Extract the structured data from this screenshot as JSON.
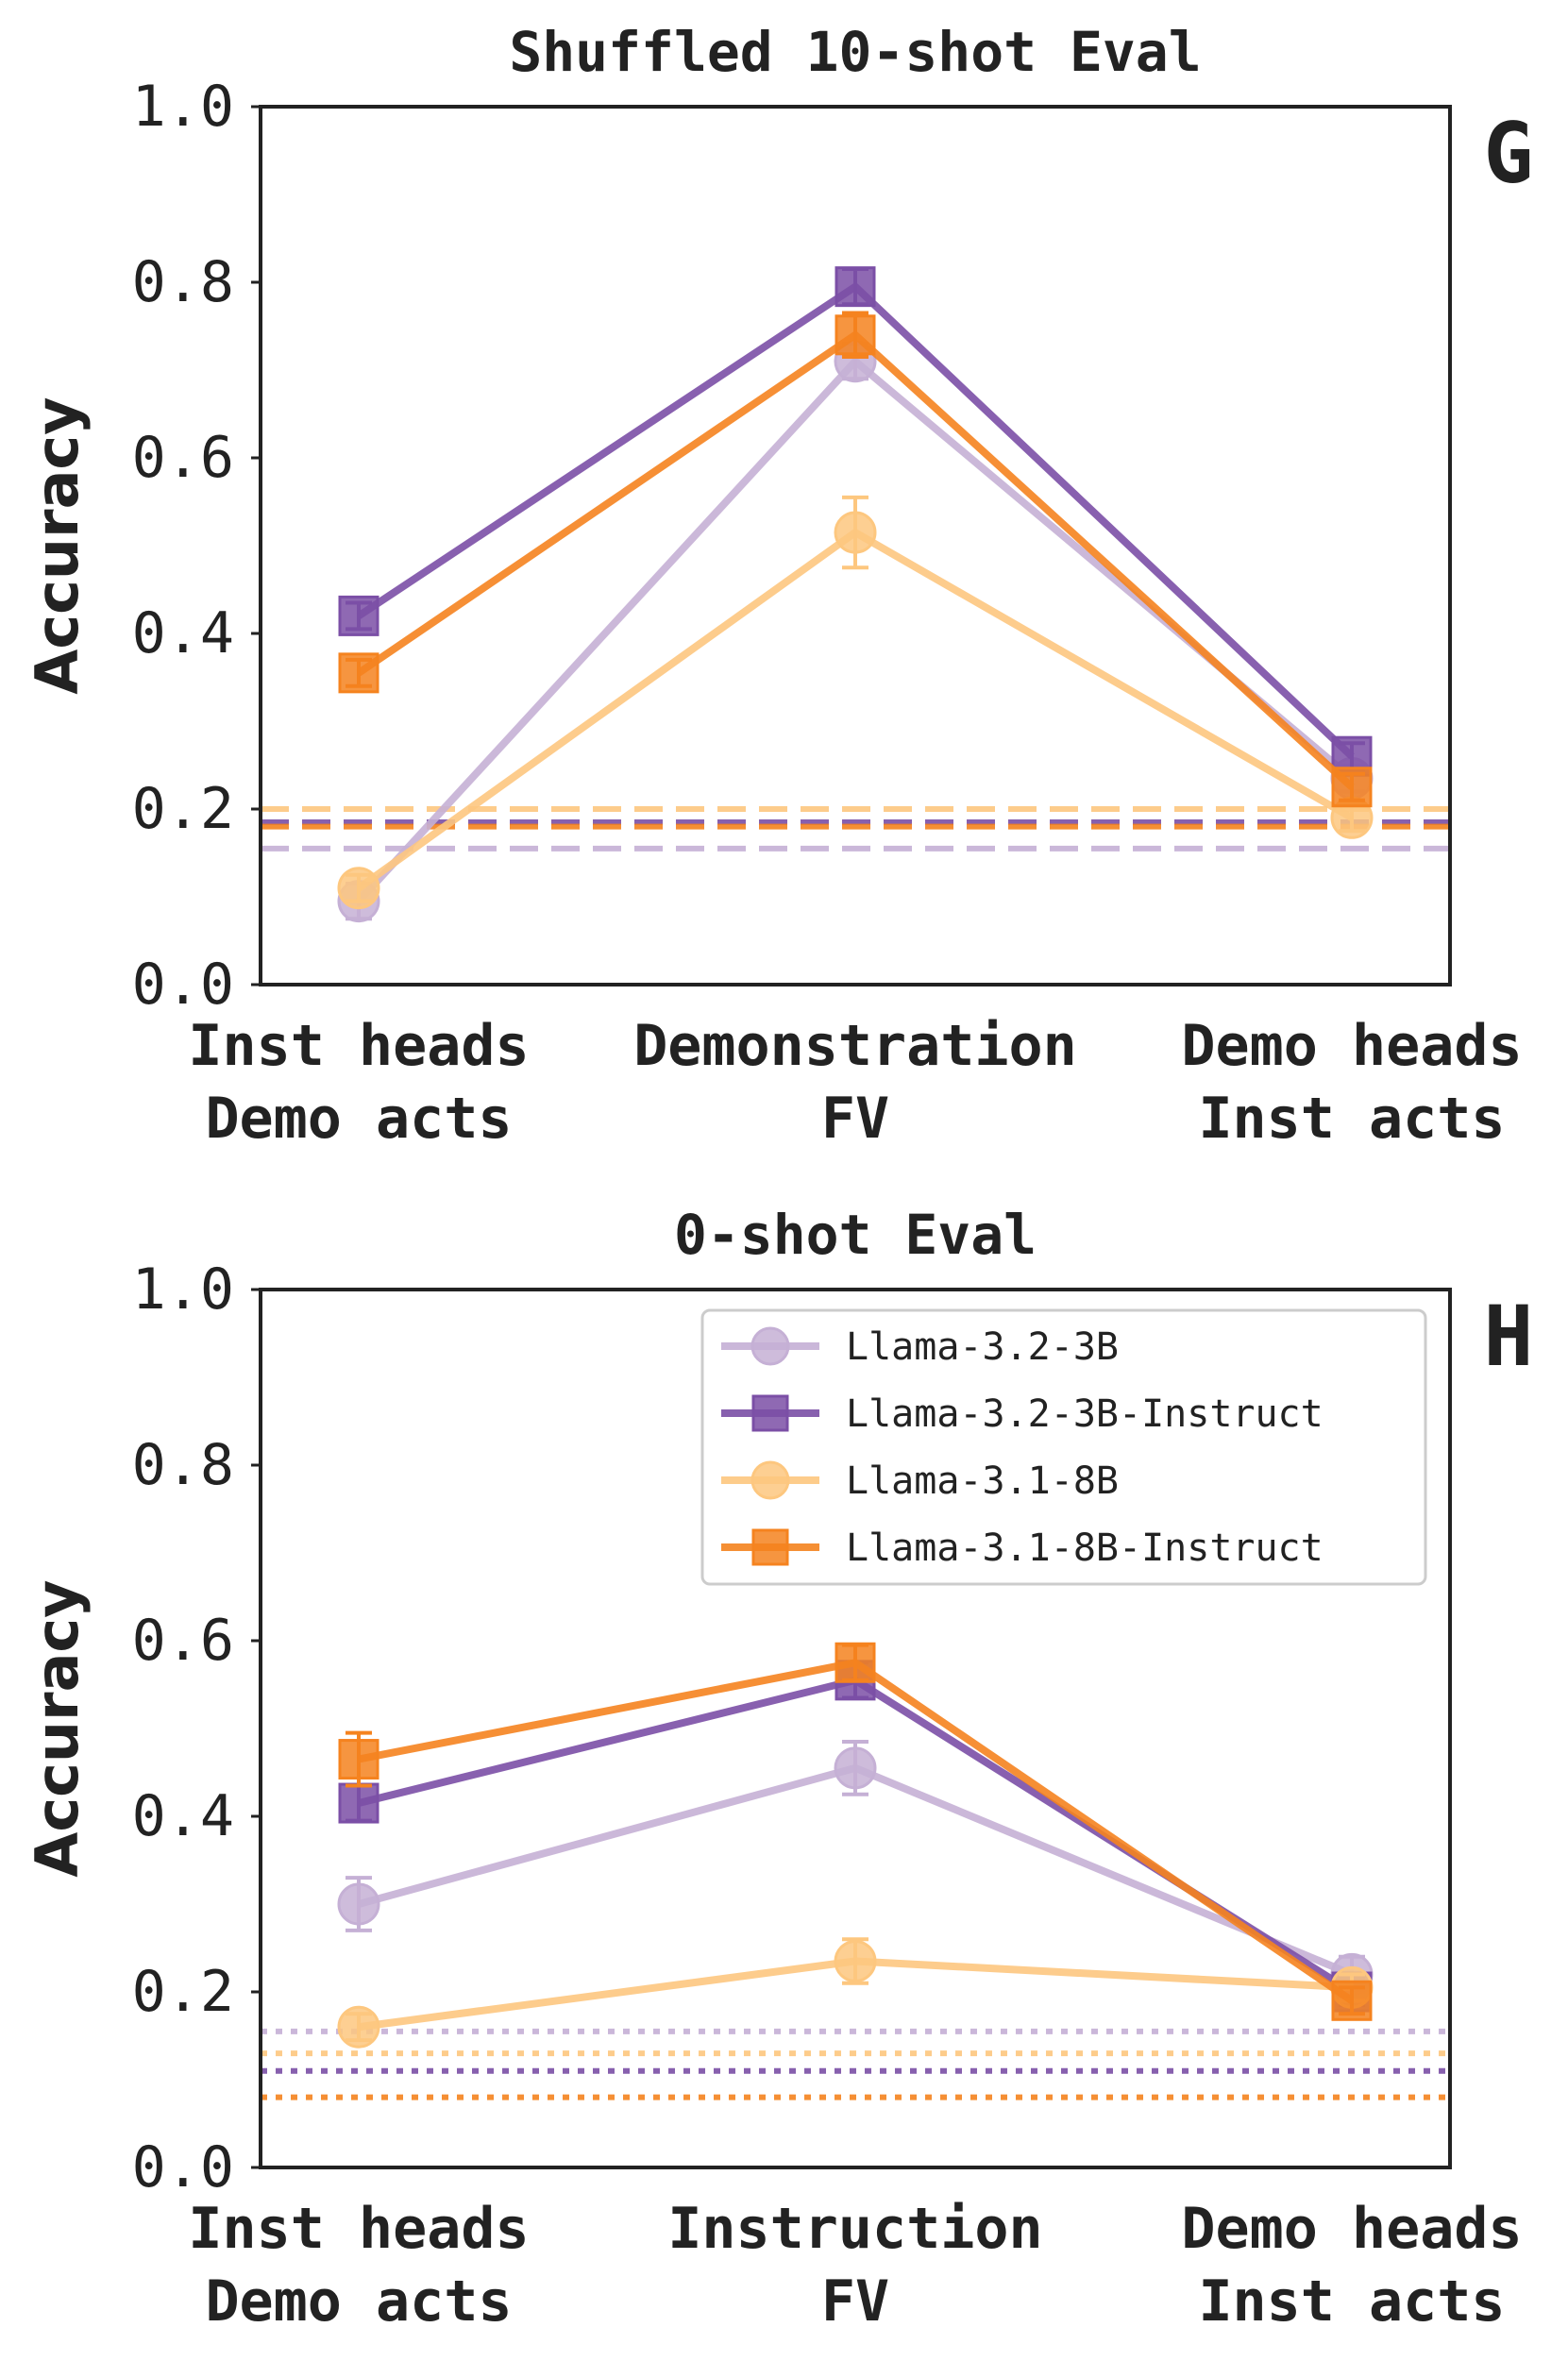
{
  "chart_data": [
    {
      "panel": "G",
      "type": "line",
      "title": "Shuffled 10-shot Eval",
      "ylabel": "Accuracy",
      "ylim": [
        0.0,
        1.0
      ],
      "yticks": [
        "0.0",
        "0.2",
        "0.4",
        "0.6",
        "0.8",
        "1.0"
      ],
      "categories": [
        [
          "Inst heads",
          "Demo acts"
        ],
        [
          "Demonstration",
          "FV"
        ],
        [
          "Demo heads",
          "Inst acts"
        ]
      ],
      "baseline_style": "dashed",
      "series": [
        {
          "name": "Llama-3.2-3B",
          "color": "#c5b0d5",
          "marker": "circle",
          "values": [
            0.095,
            0.71,
            0.235
          ],
          "errors": [
            0.02,
            0.02,
            0.015
          ],
          "baseline": 0.155
        },
        {
          "name": "Llama-3.2-3B-Instruct",
          "color": "#7b4fa6",
          "marker": "square",
          "values": [
            0.42,
            0.795,
            0.26
          ],
          "errors": [
            0.015,
            0.02,
            0.015
          ],
          "baseline": 0.185
        },
        {
          "name": "Llama-3.1-8B",
          "color": "#fdc77f",
          "marker": "circle",
          "values": [
            0.11,
            0.515,
            0.19
          ],
          "errors": [
            0.015,
            0.04,
            0.015
          ],
          "baseline": 0.2
        },
        {
          "name": "Llama-3.1-8B-Instruct",
          "color": "#f5831f",
          "marker": "square",
          "values": [
            0.355,
            0.74,
            0.225
          ],
          "errors": [
            0.015,
            0.025,
            0.015
          ],
          "baseline": 0.18
        }
      ]
    },
    {
      "panel": "H",
      "type": "line",
      "title": "0-shot Eval",
      "ylabel": "Accuracy",
      "ylim": [
        0.0,
        1.0
      ],
      "yticks": [
        "0.0",
        "0.2",
        "0.4",
        "0.6",
        "0.8",
        "1.0"
      ],
      "categories": [
        [
          "Inst heads",
          "Demo acts"
        ],
        [
          "Instruction",
          "FV"
        ],
        [
          "Demo heads",
          "Inst acts"
        ]
      ],
      "baseline_style": "dotted",
      "legend": {
        "location": "top-right"
      },
      "series": [
        {
          "name": "Llama-3.2-3B",
          "color": "#c5b0d5",
          "marker": "circle",
          "values": [
            0.3,
            0.455,
            0.22
          ],
          "errors": [
            0.03,
            0.03,
            0.02
          ],
          "baseline": 0.155
        },
        {
          "name": "Llama-3.2-3B-Instruct",
          "color": "#7b4fa6",
          "marker": "square",
          "values": [
            0.415,
            0.555,
            0.2
          ],
          "errors": [
            0.02,
            0.02,
            0.015
          ],
          "baseline": 0.11
        },
        {
          "name": "Llama-3.1-8B",
          "color": "#fdc77f",
          "marker": "circle",
          "values": [
            0.16,
            0.235,
            0.205
          ],
          "errors": [
            0.015,
            0.025,
            0.015
          ],
          "baseline": 0.13
        },
        {
          "name": "Llama-3.1-8B-Instruct",
          "color": "#f5831f",
          "marker": "square",
          "values": [
            0.465,
            0.575,
            0.19
          ],
          "errors": [
            0.03,
            0.02,
            0.015
          ],
          "baseline": 0.08
        }
      ]
    }
  ]
}
